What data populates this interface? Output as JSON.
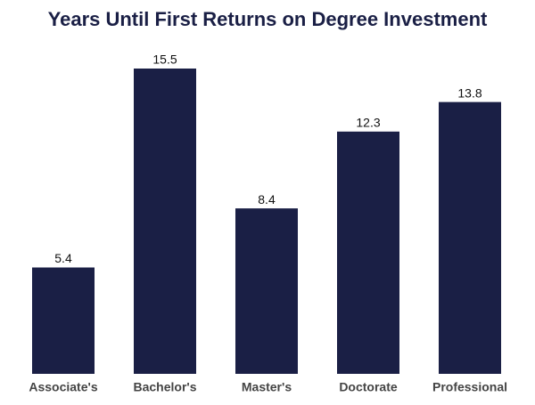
{
  "chart_data": {
    "type": "bar",
    "title": "Years Until First Returns on Degree Investment",
    "categories": [
      "Associate's",
      "Bachelor's",
      "Master's",
      "Doctorate",
      "Professional"
    ],
    "values": [
      5.4,
      15.5,
      8.4,
      12.3,
      13.8
    ],
    "color": "#1a1f45"
  }
}
